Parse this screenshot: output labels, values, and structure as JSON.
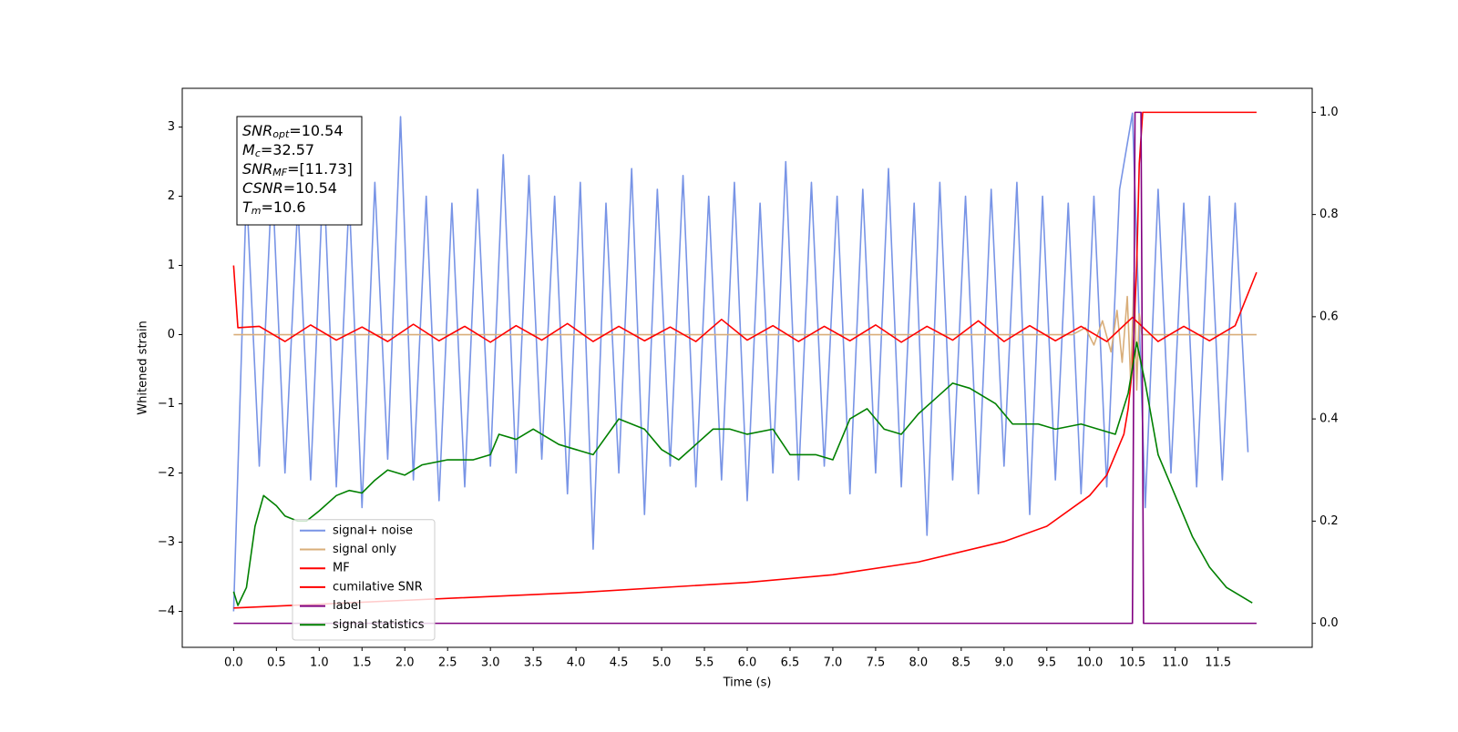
{
  "chart_data": {
    "type": "line",
    "xlabel": "Time (s)",
    "ylabel": "Whitened strain",
    "xlim": [
      -0.6,
      12.6
    ],
    "ylim": [
      -4.52,
      3.56
    ],
    "y2lim": [
      -0.047,
      1.047
    ],
    "xticks": [
      {
        "value": 0,
        "label": "0.0"
      },
      0.5,
      {
        "value": 1,
        "label": "1.0"
      },
      1.5,
      {
        "value": 2,
        "label": "2.0"
      },
      2.5,
      {
        "value": 3,
        "label": "3.0"
      },
      3.5,
      {
        "value": 4,
        "label": "4.0"
      },
      4.5,
      {
        "value": 5,
        "label": "5.0"
      },
      5.5,
      {
        "value": 6,
        "label": "6.0"
      },
      6.5,
      {
        "value": 7,
        "label": "7.0"
      },
      7.5,
      {
        "value": 8,
        "label": "8.0"
      },
      8.5,
      {
        "value": 9,
        "label": "9.0"
      },
      9.5,
      {
        "value": 10,
        "label": "10.0"
      },
      10.5,
      {
        "value": 11,
        "label": "11.0"
      },
      11.5
    ],
    "yticks": [
      {
        "value": -4,
        "label": "−4"
      },
      {
        "value": -3,
        "label": "−3"
      },
      {
        "value": -2,
        "label": "−2"
      },
      {
        "value": -1,
        "label": "−1"
      },
      0,
      1,
      2,
      3
    ],
    "y2ticks": [
      {
        "value": 0,
        "label": "0.0"
      },
      0.2,
      0.4,
      0.6,
      0.8,
      {
        "value": 1,
        "label": "1.0"
      }
    ],
    "grid": false,
    "legend": "lower left",
    "annotations": [
      {
        "symbol": "SNR",
        "subscript": "opt",
        "text": "=10.54"
      },
      {
        "symbol": "M",
        "subscript": "c",
        "text": "=32.57"
      },
      {
        "symbol": "SNR",
        "subscript": "MF",
        "text": "=[11.73]"
      },
      {
        "symbol": "CSNR",
        "subscript": "",
        "text": "=10.54"
      },
      {
        "symbol": "T",
        "subscript": "m",
        "text": "=10.6"
      }
    ],
    "series": [
      {
        "name": "signal+ noise",
        "color": "#7894e6",
        "x": [
          0,
          0.15,
          0.3,
          0.45,
          0.6,
          0.75,
          0.9,
          1.05,
          1.2,
          1.35,
          1.5,
          1.65,
          1.8,
          1.95,
          2.1,
          2.25,
          2.4,
          2.55,
          2.7,
          2.85,
          3,
          3.15,
          3.3,
          3.45,
          3.6,
          3.75,
          3.9,
          4.05,
          4.2,
          4.35,
          4.5,
          4.65,
          4.8,
          4.95,
          5.1,
          5.25,
          5.4,
          5.55,
          5.7,
          5.85,
          6,
          6.15,
          6.3,
          6.45,
          6.6,
          6.75,
          6.9,
          7.05,
          7.2,
          7.35,
          7.5,
          7.65,
          7.8,
          7.95,
          8.1,
          8.25,
          8.4,
          8.55,
          8.7,
          8.85,
          9,
          9.15,
          9.3,
          9.45,
          9.6,
          9.75,
          9.9,
          10.05,
          10.2,
          10.35,
          10.5,
          10.65,
          10.8,
          10.95,
          11.1,
          11.25,
          11.4,
          11.55,
          11.7,
          11.85
        ],
        "values": [
          -4.0,
          2.1,
          -1.9,
          2.3,
          -2.0,
          1.9,
          -2.1,
          2.4,
          -2.2,
          2.0,
          -2.5,
          2.2,
          -1.8,
          3.15,
          -2.1,
          2.0,
          -2.4,
          1.9,
          -2.2,
          2.1,
          -1.9,
          2.6,
          -2.0,
          2.3,
          -1.8,
          2.0,
          -2.3,
          2.2,
          -3.1,
          1.9,
          -2.0,
          2.4,
          -2.6,
          2.1,
          -1.9,
          2.3,
          -2.2,
          2.0,
          -2.1,
          2.2,
          -2.4,
          1.9,
          -2.0,
          2.5,
          -2.1,
          2.2,
          -1.9,
          2.0,
          -2.3,
          2.1,
          -2.0,
          2.4,
          -2.2,
          1.9,
          -2.9,
          2.2,
          -2.1,
          2.0,
          -2.3,
          2.1,
          -1.9,
          2.2,
          -2.6,
          2.0,
          -2.1,
          1.9,
          -2.3,
          2.0,
          -2.2,
          2.1,
          3.2,
          -2.5,
          2.1,
          -2.0,
          1.9,
          -2.2,
          2.0,
          -2.1,
          1.9,
          -1.7
        ]
      },
      {
        "name": "signal only",
        "color": "#d9ae7a",
        "x": [
          0,
          9.8,
          9.95,
          10.05,
          10.15,
          10.25,
          10.32,
          10.38,
          10.44,
          10.48,
          10.52,
          10.55,
          10.58,
          10.61,
          10.65,
          11.95
        ],
        "values": [
          0,
          0,
          0.1,
          -0.15,
          0.2,
          -0.25,
          0.35,
          -0.4,
          0.55,
          -0.7,
          0.9,
          -0.8,
          0.3,
          0,
          0,
          0
        ]
      },
      {
        "name": "MF",
        "color": "#ff0000",
        "x": [
          0,
          0.05,
          0.3,
          0.6,
          0.9,
          1.2,
          1.5,
          1.8,
          2.1,
          2.4,
          2.7,
          3,
          3.3,
          3.6,
          3.9,
          4.2,
          4.5,
          4.8,
          5.1,
          5.4,
          5.7,
          6,
          6.3,
          6.6,
          6.9,
          7.2,
          7.5,
          7.8,
          8.1,
          8.4,
          8.7,
          9,
          9.3,
          9.6,
          9.9,
          10.2,
          10.5,
          10.8,
          11.1,
          11.4,
          11.7,
          11.95
        ],
        "values": [
          1.0,
          0.1,
          0.12,
          -0.1,
          0.14,
          -0.08,
          0.11,
          -0.1,
          0.15,
          -0.09,
          0.12,
          -0.11,
          0.13,
          -0.08,
          0.16,
          -0.1,
          0.12,
          -0.09,
          0.11,
          -0.1,
          0.22,
          -0.08,
          0.13,
          -0.1,
          0.12,
          -0.09,
          0.14,
          -0.11,
          0.12,
          -0.08,
          0.2,
          -0.1,
          0.13,
          -0.09,
          0.12,
          -0.1,
          0.25,
          -0.1,
          0.12,
          -0.09,
          0.13,
          0.9
        ]
      },
      {
        "name": "cumilative SNR",
        "color": "#ff0000",
        "axis": "y2",
        "x": [
          0,
          2,
          4,
          6,
          7,
          8,
          9,
          9.5,
          10,
          10.2,
          10.4,
          10.45,
          10.5,
          10.55,
          10.58,
          10.62,
          11.95
        ],
        "values": [
          0.03,
          0.045,
          0.06,
          0.08,
          0.095,
          0.12,
          0.16,
          0.19,
          0.25,
          0.29,
          0.37,
          0.42,
          0.5,
          0.7,
          0.9,
          1.0,
          1.0
        ]
      },
      {
        "name": "label",
        "color": "#800080",
        "axis": "y2",
        "x": [
          0,
          10.5,
          10.53,
          10.6,
          10.63,
          11.95
        ],
        "values": [
          0,
          0,
          1,
          1,
          0,
          0
        ]
      },
      {
        "name": "signal statistics",
        "color": "#008000",
        "axis": "y2",
        "x": [
          0,
          0.05,
          0.15,
          0.25,
          0.35,
          0.5,
          0.6,
          0.75,
          0.85,
          1.0,
          1.2,
          1.35,
          1.5,
          1.65,
          1.8,
          2.0,
          2.2,
          2.5,
          2.8,
          3.0,
          3.1,
          3.3,
          3.5,
          3.8,
          4.0,
          4.2,
          4.5,
          4.8,
          5.0,
          5.2,
          5.4,
          5.6,
          5.8,
          6.0,
          6.3,
          6.5,
          6.8,
          7.0,
          7.2,
          7.4,
          7.6,
          7.8,
          8.0,
          8.2,
          8.4,
          8.6,
          8.9,
          9.1,
          9.4,
          9.6,
          9.9,
          10.1,
          10.3,
          10.45,
          10.55,
          10.65,
          10.8,
          11.0,
          11.2,
          11.4,
          11.6,
          11.8,
          11.9
        ],
        "values": [
          0.062,
          0.035,
          0.07,
          0.19,
          0.25,
          0.23,
          0.21,
          0.2,
          0.2,
          0.22,
          0.25,
          0.26,
          0.255,
          0.28,
          0.3,
          0.29,
          0.31,
          0.32,
          0.32,
          0.33,
          0.37,
          0.36,
          0.38,
          0.35,
          0.34,
          0.33,
          0.4,
          0.38,
          0.34,
          0.32,
          0.35,
          0.38,
          0.38,
          0.37,
          0.38,
          0.33,
          0.33,
          0.32,
          0.4,
          0.42,
          0.38,
          0.37,
          0.41,
          0.44,
          0.47,
          0.46,
          0.43,
          0.39,
          0.39,
          0.38,
          0.39,
          0.38,
          0.37,
          0.45,
          0.55,
          0.47,
          0.33,
          0.25,
          0.17,
          0.11,
          0.07,
          0.05,
          0.04
        ]
      }
    ]
  }
}
